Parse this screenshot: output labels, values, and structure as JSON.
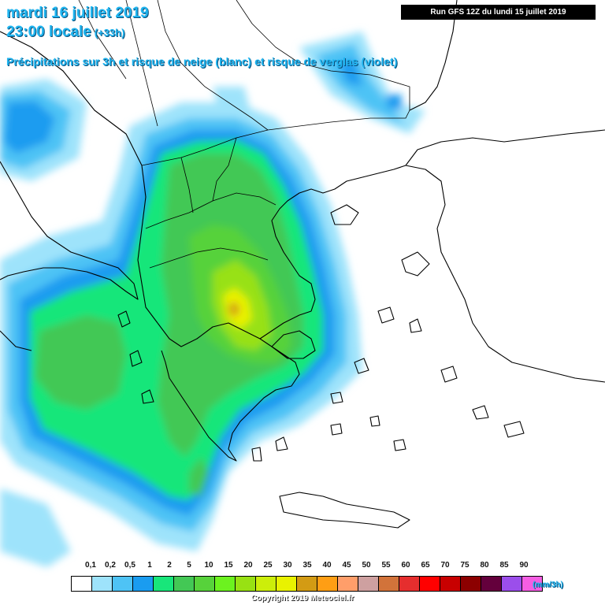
{
  "header": {
    "date": "mardi 16 juillet 2019",
    "time": "23:00 locale",
    "offset": "(+33h)",
    "subtitle": "Précipitations sur 3h et risque de neige (blanc) et risque de verglas (violet)",
    "run": "Run GFS 12Z du lundi 15 juillet 2019"
  },
  "legend": {
    "ticks": [
      "0,1",
      "0,2",
      "0,5",
      "1",
      "2",
      "5",
      "10",
      "15",
      "20",
      "25",
      "30",
      "35",
      "40",
      "45",
      "50",
      "55",
      "60",
      "65",
      "70",
      "75",
      "80",
      "85",
      "90"
    ],
    "colors": [
      "#ffffff",
      "#9ee3fb",
      "#4ec3f5",
      "#1a9cf0",
      "#18e67a",
      "#43c855",
      "#57d23b",
      "#6cf21f",
      "#98e113",
      "#ccee0a",
      "#e9f200",
      "#d39b14",
      "#ff9e14",
      "#ff9e6a",
      "#cea0a0",
      "#d2733a",
      "#e62e2e",
      "#ff0000",
      "#c80000",
      "#8c0000",
      "#64003c",
      "#9b4eeb",
      "#f55ee3"
    ],
    "unit": "(mm/3h)"
  },
  "copyright": "Copyright 2019 Meteociel.fr"
}
